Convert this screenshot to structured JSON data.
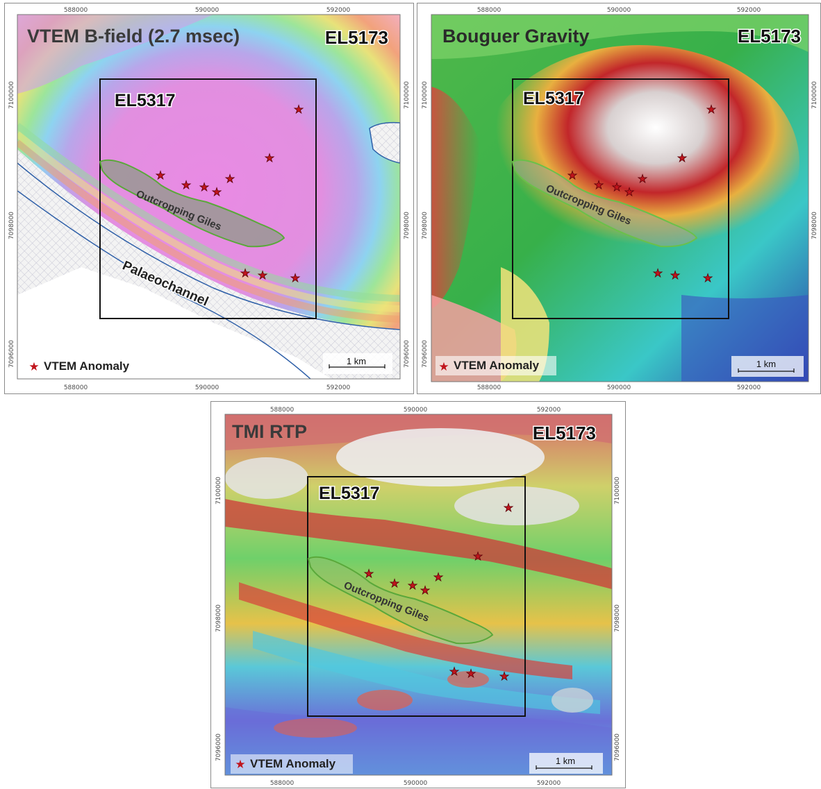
{
  "panels": [
    {
      "title": "VTEM B-field (2.7 msec)",
      "tenement_outer": "EL5173",
      "tenement_inner": "EL5317",
      "outcrop_label": "Outcropping Giles",
      "extra_label": "Palaeochannel",
      "legend_label": "VTEM Anomaly",
      "scale_label": "1 km",
      "x_ticks": [
        "588000",
        "590000",
        "592000"
      ],
      "y_ticks": [
        "7100000",
        "7098000",
        "7096000"
      ]
    },
    {
      "title": "Bouguer Gravity",
      "tenement_outer": "EL5173",
      "tenement_inner": "EL5317",
      "outcrop_label": "Outcropping Giles",
      "legend_label": "VTEM Anomaly",
      "scale_label": "1 km",
      "x_ticks": [
        "588000",
        "590000",
        "592000"
      ],
      "y_ticks": [
        "7100000",
        "7098000",
        "7096000"
      ]
    },
    {
      "title": "TMI RTP",
      "tenement_outer": "EL5173",
      "tenement_inner": "EL5317",
      "outcrop_label": "Outcropping Giles",
      "legend_label": "VTEM Anomaly",
      "scale_label": "1 km",
      "x_ticks": [
        "588000",
        "590000",
        "592000"
      ],
      "y_ticks": [
        "7100000",
        "7098000",
        "7096000"
      ]
    }
  ],
  "colors": {
    "anomaly_star": "#c0141c",
    "outcrop_fill": "#8fbf6a",
    "outcrop_stroke": "#5aa83a",
    "tenement_box": "#111111",
    "palaeochannel_line": "#2e5fa8"
  },
  "icons": {
    "anomaly_marker": "red-star-icon"
  }
}
